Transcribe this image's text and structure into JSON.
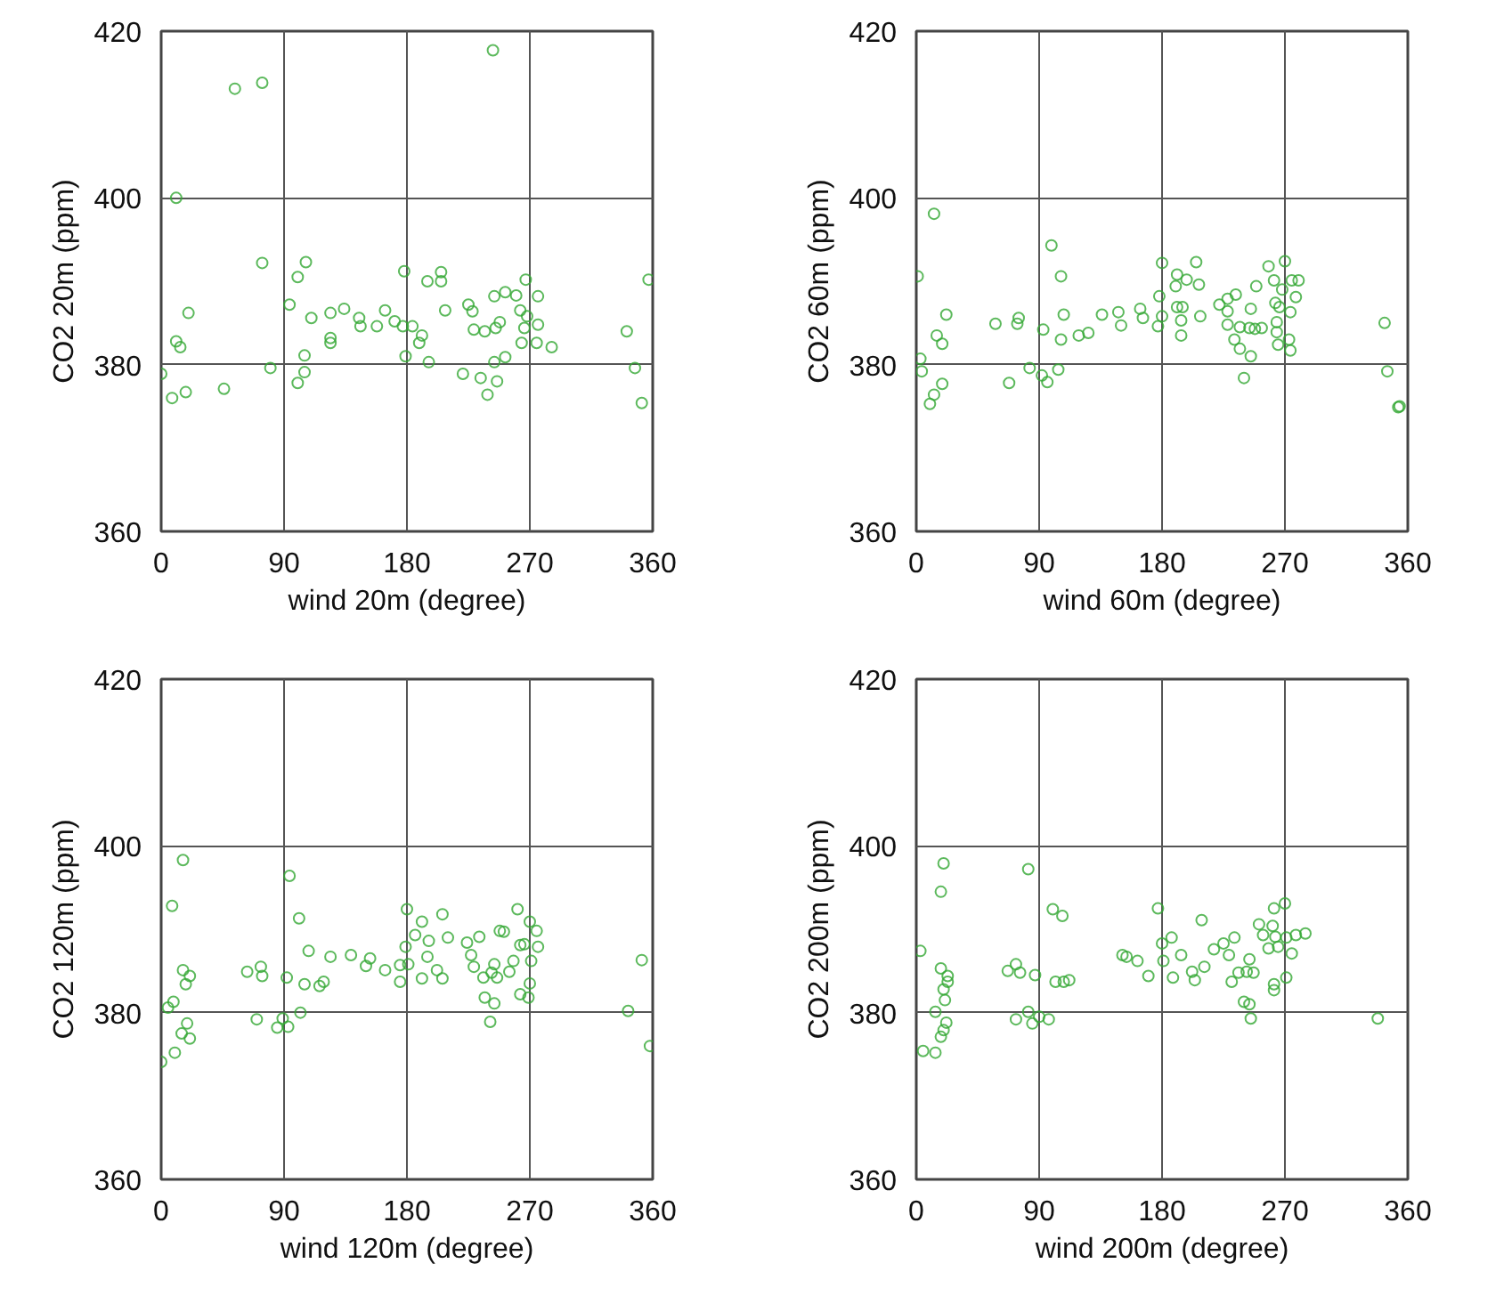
{
  "chart_data": [
    {
      "type": "scatter",
      "xlabel": "wind 20m (degree)",
      "ylabel": "CO2 20m (ppm)",
      "color": "#33a833",
      "marker": "circle",
      "grid": true,
      "xlim": [
        0,
        360
      ],
      "ylim": [
        360,
        420
      ],
      "xticks": [
        0,
        90,
        180,
        270,
        360
      ],
      "yticks": [
        360,
        380,
        400,
        420
      ],
      "x": [
        243,
        54,
        74,
        11,
        74,
        106,
        100,
        20,
        94,
        110,
        124,
        134,
        124,
        124,
        145,
        146,
        158,
        164,
        171,
        177,
        184,
        178,
        195,
        205,
        205,
        208,
        189,
        191,
        179,
        196,
        221,
        234,
        239,
        246,
        244,
        225,
        228,
        229,
        237,
        245,
        248,
        244,
        252,
        260,
        267,
        263,
        268,
        266,
        276,
        276,
        275,
        286,
        264,
        252,
        11,
        14,
        0,
        8,
        18,
        46,
        80,
        100,
        105,
        105,
        341,
        347,
        352,
        357
      ],
      "values": [
        417.7,
        413.1,
        413.8,
        400,
        392.2,
        392.3,
        390.5,
        386.2,
        387.2,
        385.6,
        386.2,
        386.7,
        383.2,
        382.6,
        385.6,
        384.6,
        384.6,
        386.5,
        385.2,
        384.6,
        384.6,
        391.2,
        390,
        391.1,
        390,
        386.5,
        382.6,
        383.5,
        381,
        380.3,
        378.9,
        378.4,
        376.4,
        378,
        380.3,
        387.2,
        386.4,
        384.2,
        384,
        384.4,
        385.1,
        388.2,
        388.7,
        388.3,
        390.2,
        386.5,
        385.8,
        384.4,
        388.2,
        384.8,
        382.6,
        382.1,
        382.6,
        380.9,
        382.8,
        382.1,
        378.9,
        376,
        376.7,
        377.1,
        379.6,
        377.8,
        379.1,
        381.1,
        384,
        379.6,
        375.4,
        390.2
      ]
    },
    {
      "type": "scatter",
      "xlabel": "wind 60m (degree)",
      "ylabel": "CO2 60m (ppm)",
      "color": "#33a833",
      "marker": "circle",
      "grid": true,
      "xlim": [
        0,
        360
      ],
      "ylim": [
        360,
        420
      ],
      "xticks": [
        0,
        90,
        180,
        270,
        360
      ],
      "yticks": [
        360,
        380,
        400,
        420
      ],
      "x": [
        13,
        99,
        106,
        1,
        22,
        15,
        19,
        3,
        4,
        19,
        13,
        10,
        68,
        83,
        92,
        96,
        104,
        58,
        74,
        75,
        93,
        108,
        106,
        119,
        126,
        136,
        148,
        150,
        164,
        166,
        177,
        180,
        178,
        180,
        191,
        190,
        198,
        207,
        205,
        191,
        195,
        194,
        194,
        208,
        222,
        228,
        228,
        228,
        234,
        233,
        237,
        245,
        240,
        237,
        244,
        248,
        253,
        245,
        249,
        258,
        262,
        263,
        266,
        270,
        268,
        275,
        280,
        278,
        274,
        264,
        264,
        265,
        273,
        274,
        343,
        345,
        353,
        354
      ],
      "values": [
        398.1,
        394.3,
        390.6,
        390.6,
        386,
        383.5,
        382.5,
        380.7,
        379.2,
        377.7,
        376.4,
        375.3,
        377.8,
        379.6,
        378.7,
        377.9,
        379.4,
        384.9,
        384.9,
        385.6,
        384.2,
        386,
        383,
        383.5,
        383.8,
        386,
        386.3,
        384.7,
        386.7,
        385.6,
        384.6,
        385.8,
        388.2,
        392.2,
        390.8,
        389.4,
        390.2,
        389.6,
        392.3,
        386.9,
        386.9,
        385.3,
        383.5,
        385.8,
        387.2,
        387.9,
        386.4,
        384.8,
        388.4,
        383,
        381.9,
        381,
        378.4,
        384.5,
        384.4,
        384.3,
        384.4,
        386.7,
        389.4,
        391.8,
        390.1,
        387.4,
        386.9,
        392.4,
        389,
        390.1,
        390.1,
        388.1,
        386.3,
        385.1,
        383.9,
        382.4,
        383,
        381.7,
        385,
        379.2,
        374.9,
        375
      ]
    },
    {
      "type": "scatter",
      "xlabel": "wind 120m (degree)",
      "ylabel": "CO2 120m (ppm)",
      "color": "#33a833",
      "marker": "circle",
      "grid": true,
      "xlim": [
        0,
        360
      ],
      "ylim": [
        360,
        420
      ],
      "xticks": [
        0,
        90,
        180,
        270,
        360
      ],
      "yticks": [
        360,
        380,
        400,
        420
      ],
      "x": [
        16,
        94,
        8,
        101,
        180,
        191,
        206,
        186,
        196,
        179,
        210,
        195,
        108,
        124,
        139,
        153,
        150,
        164,
        175,
        175,
        181,
        191,
        202,
        206,
        63,
        73,
        74,
        92,
        105,
        116,
        119,
        16,
        21,
        18,
        9,
        5,
        19,
        15,
        21,
        10,
        0,
        70,
        85,
        93,
        89,
        102,
        224,
        233,
        227,
        229,
        236,
        242,
        246,
        244,
        248,
        251,
        261,
        263,
        266,
        270,
        275,
        276,
        271,
        258,
        255,
        270,
        263,
        269,
        237,
        244,
        241,
        352,
        342,
        358
      ],
      "values": [
        398.3,
        396.4,
        392.8,
        391.3,
        392.4,
        390.9,
        391.8,
        389.3,
        388.6,
        387.9,
        389,
        386.7,
        387.4,
        386.7,
        386.9,
        386.5,
        385.6,
        385.1,
        385.7,
        383.7,
        385.8,
        384.1,
        385.1,
        384.1,
        384.9,
        385.5,
        384.4,
        384.2,
        383.4,
        383.2,
        383.7,
        385.1,
        384.4,
        383.4,
        381.3,
        380.6,
        378.7,
        377.5,
        376.9,
        375.2,
        374.1,
        379.2,
        378.2,
        378.3,
        379.3,
        380,
        388.4,
        389.1,
        386.9,
        385.5,
        384.2,
        384.8,
        384.2,
        385.8,
        389.8,
        389.7,
        392.4,
        388.1,
        388.2,
        390.9,
        389.8,
        387.9,
        386.2,
        386.2,
        384.9,
        383.5,
        382.2,
        381.8,
        381.8,
        381.1,
        378.9,
        386.3,
        380.2,
        376
      ]
    },
    {
      "type": "scatter",
      "xlabel": "wind 200m (degree)",
      "ylabel": "CO2 200m (ppm)",
      "color": "#33a833",
      "marker": "circle",
      "grid": true,
      "xlim": [
        0,
        360
      ],
      "ylim": [
        360,
        420
      ],
      "xticks": [
        0,
        90,
        180,
        270,
        360
      ],
      "yticks": [
        360,
        380,
        400,
        420
      ],
      "x": [
        20,
        82,
        18,
        3,
        18,
        23,
        23,
        20,
        21,
        14,
        22,
        20,
        18,
        5,
        14,
        67,
        73,
        76,
        87,
        100,
        107,
        102,
        108,
        112,
        73,
        82,
        85,
        90,
        97,
        151,
        154,
        162,
        170,
        177,
        180,
        181,
        187,
        194,
        188,
        202,
        204,
        211,
        209,
        218,
        225,
        229,
        233,
        231,
        236,
        242,
        247,
        244,
        251,
        254,
        258,
        262,
        261,
        263,
        265,
        270,
        271,
        275,
        285,
        278,
        271,
        262,
        262,
        240,
        244,
        245,
        338
      ],
      "values": [
        397.9,
        397.2,
        394.5,
        387.4,
        385.3,
        384.4,
        383.7,
        382.8,
        381.5,
        380.1,
        378.8,
        377.9,
        377.1,
        375.4,
        375.2,
        385,
        385.8,
        384.8,
        384.5,
        392.4,
        391.6,
        383.7,
        383.7,
        383.9,
        379.2,
        380.1,
        378.7,
        379.5,
        379.2,
        386.9,
        386.7,
        386.2,
        384.4,
        392.5,
        388.3,
        386.2,
        389,
        386.9,
        384.2,
        384.9,
        383.9,
        385.5,
        391.1,
        387.6,
        388.3,
        386.9,
        389,
        383.7,
        384.8,
        384.9,
        384.8,
        386.4,
        390.6,
        389.3,
        387.7,
        392.5,
        390.4,
        389.1,
        387.9,
        393.1,
        389,
        387.1,
        389.5,
        389.3,
        384.2,
        383.4,
        382.7,
        381.3,
        381,
        379.3,
        379.3
      ]
    }
  ]
}
